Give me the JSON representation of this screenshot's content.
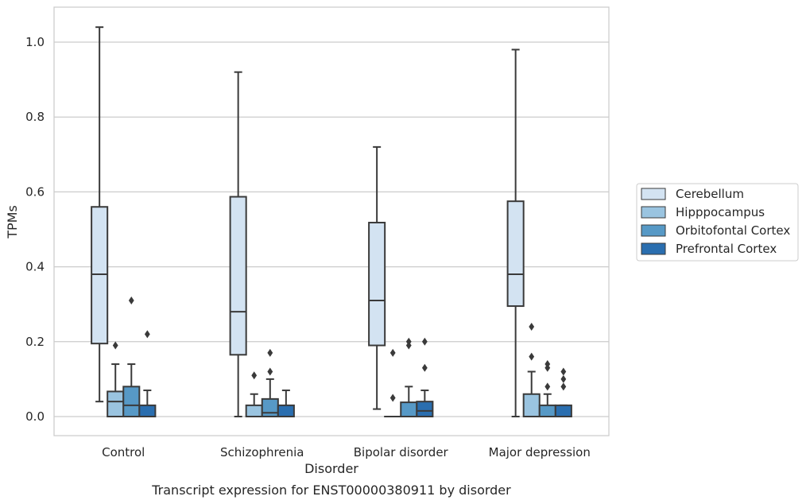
{
  "caption": "Transcript expression for ENST00000380911 by disorder",
  "chart_data": {
    "type": "box",
    "title": "",
    "xlabel": "Disorder",
    "ylabel": "TPMs",
    "ylim": [
      -0.05,
      1.09
    ],
    "yticks": [
      0.0,
      0.2,
      0.4,
      0.6,
      0.8,
      1.0
    ],
    "ytick_labels": [
      "0.0",
      "0.2",
      "0.4",
      "0.6",
      "0.8",
      "1.0"
    ],
    "grid": "horizontal",
    "legend_position": "right",
    "categories": [
      "Control",
      "Schizophrenia",
      "Bipolar disorder",
      "Major depression"
    ],
    "series": [
      {
        "name": "Cerebellum",
        "color": "#d3e3f2",
        "boxes": [
          {
            "whislo": 0.04,
            "q1": 0.195,
            "med": 0.38,
            "q3": 0.56,
            "whishi": 1.04,
            "fliers": []
          },
          {
            "whislo": 0.0,
            "q1": 0.165,
            "med": 0.28,
            "q3": 0.587,
            "whishi": 0.92,
            "fliers": []
          },
          {
            "whislo": 0.02,
            "q1": 0.19,
            "med": 0.31,
            "q3": 0.518,
            "whishi": 0.72,
            "fliers": []
          },
          {
            "whislo": 0.0,
            "q1": 0.295,
            "med": 0.38,
            "q3": 0.575,
            "whishi": 0.98,
            "fliers": []
          }
        ]
      },
      {
        "name": "Hipppocampus",
        "color": "#9ac4e0",
        "boxes": [
          {
            "whislo": 0.0,
            "q1": 0.0,
            "med": 0.04,
            "q3": 0.067,
            "whishi": 0.14,
            "fliers": [
              0.19
            ]
          },
          {
            "whislo": 0.0,
            "q1": 0.0,
            "med": 0.0,
            "q3": 0.03,
            "whishi": 0.06,
            "fliers": [
              0.11
            ]
          },
          {
            "whislo": 0.0,
            "q1": 0.0,
            "med": 0.0,
            "q3": 0.0,
            "whishi": 0.0,
            "fliers": [
              0.05,
              0.17
            ]
          },
          {
            "whislo": 0.0,
            "q1": 0.0,
            "med": 0.0,
            "q3": 0.06,
            "whishi": 0.12,
            "fliers": [
              0.16,
              0.24
            ]
          }
        ]
      },
      {
        "name": "Orbitofontal Cortex",
        "color": "#5799c6",
        "boxes": [
          {
            "whislo": 0.0,
            "q1": 0.0,
            "med": 0.03,
            "q3": 0.08,
            "whishi": 0.14,
            "fliers": [
              0.31
            ]
          },
          {
            "whislo": 0.0,
            "q1": 0.0,
            "med": 0.01,
            "q3": 0.047,
            "whishi": 0.1,
            "fliers": [
              0.12,
              0.17
            ]
          },
          {
            "whislo": 0.0,
            "q1": 0.0,
            "med": 0.0,
            "q3": 0.038,
            "whishi": 0.08,
            "fliers": [
              0.19,
              0.2
            ]
          },
          {
            "whislo": 0.0,
            "q1": 0.0,
            "med": 0.0,
            "q3": 0.03,
            "whishi": 0.06,
            "fliers": [
              0.08,
              0.13,
              0.14
            ]
          }
        ]
      },
      {
        "name": "Prefrontal Cortex",
        "color": "#2a6eaf",
        "boxes": [
          {
            "whislo": 0.0,
            "q1": 0.0,
            "med": 0.0,
            "q3": 0.03,
            "whishi": 0.07,
            "fliers": [
              0.22
            ]
          },
          {
            "whislo": 0.0,
            "q1": 0.0,
            "med": 0.0,
            "q3": 0.03,
            "whishi": 0.07,
            "fliers": []
          },
          {
            "whislo": 0.0,
            "q1": 0.0,
            "med": 0.015,
            "q3": 0.04,
            "whishi": 0.07,
            "fliers": [
              0.13,
              0.2
            ]
          },
          {
            "whislo": 0.0,
            "q1": 0.0,
            "med": 0.0,
            "q3": 0.03,
            "whishi": 0.03,
            "fliers": [
              0.08,
              0.1,
              0.12
            ]
          }
        ]
      }
    ]
  }
}
